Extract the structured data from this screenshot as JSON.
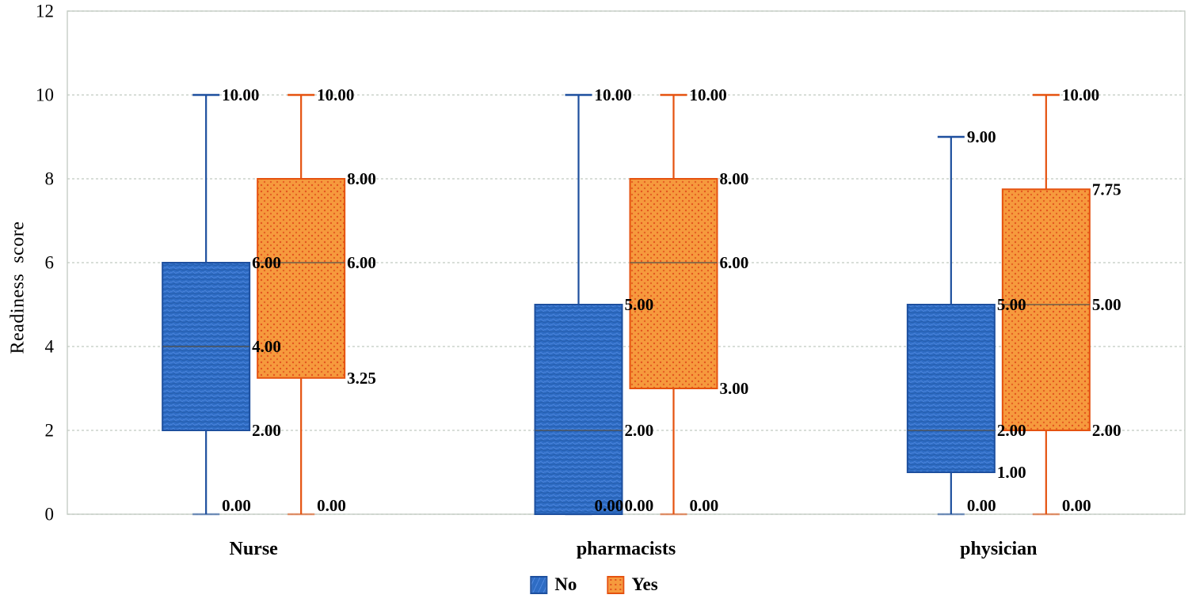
{
  "figure": {
    "background": "#ffffff"
  },
  "chart_data": {
    "type": "boxplot",
    "title": "",
    "ylabel": "Readiness  score",
    "xlabel": "",
    "ylim": [
      0,
      12
    ],
    "yticks": [
      "0",
      "2",
      "4",
      "6",
      "8",
      "10",
      "12"
    ],
    "grid": "horizontal",
    "legend_position": "bottom-center",
    "categories": [
      "Nurse",
      "pharmacists",
      "physician"
    ],
    "series": [
      {
        "name": "No",
        "fill": "#2e6cc4",
        "fill_texture": "#4f87de",
        "fill_texture_dark": "#1f55a2",
        "border": "#1d4f9e",
        "boxes": [
          {
            "category": "Nurse",
            "min": "0.00",
            "q1": "2.00",
            "median": "4.00",
            "q3": "6.00",
            "max": "10.00"
          },
          {
            "category": "pharmacists",
            "min": "0.00",
            "q1": "0.00",
            "median": "2.00",
            "q3": "5.00",
            "max": "10.00"
          },
          {
            "category": "physician",
            "min": "0.00",
            "q1": "1.00",
            "median": "2.00",
            "q3": "5.00",
            "max": "9.00"
          }
        ]
      },
      {
        "name": "Yes",
        "fill": "#f69a3d",
        "fill_texture": "#e1511d",
        "fill_texture_dark": "#e1511d",
        "border": "#e5520f",
        "boxes": [
          {
            "category": "Nurse",
            "min": "0.00",
            "q1": "3.25",
            "median": "6.00",
            "q3": "8.00",
            "max": "10.00"
          },
          {
            "category": "pharmacists",
            "min": "0.00",
            "q1": "3.00",
            "median": "6.00",
            "q3": "8.00",
            "max": "10.00"
          },
          {
            "category": "physician",
            "min": "0.00",
            "q1": "2.00",
            "median": "5.00",
            "q3": "7.75",
            "max": "10.00"
          }
        ]
      }
    ],
    "colors": {
      "gridline": "#ccd3cc",
      "axis": "#c6cdc6",
      "median_line": "#55524a",
      "label_text": "#000000",
      "tick_text": "#000000"
    }
  }
}
